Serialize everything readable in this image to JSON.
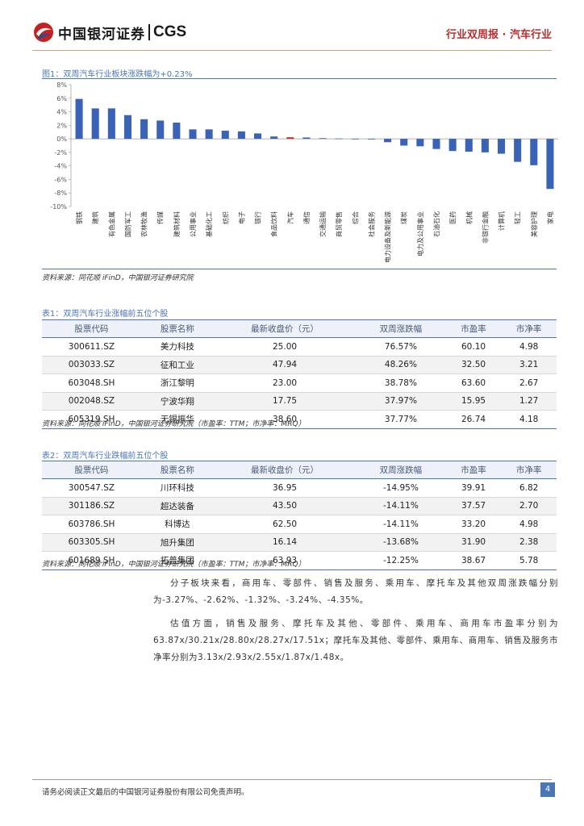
{
  "header": {
    "logo_cn": "中国银河证券",
    "logo_en": "CGS",
    "report_type": "行业双周报 · 汽车行业"
  },
  "figure1": {
    "caption": "图1：双周汽车行业板块涨跌幅为+0.23%",
    "source": "资料来源：同花顺 iFinD，中国银河证券研究院"
  },
  "chart_data": {
    "type": "bar",
    "categories": [
      "钢铁",
      "建筑",
      "有色金属",
      "国防军工",
      "农林牧渔",
      "传媒",
      "建筑材料",
      "公用事业",
      "基础化工",
      "纺织",
      "电子",
      "银行",
      "食品饮料",
      "汽车",
      "通信",
      "交通运输",
      "商贸零售",
      "综合",
      "社会服务",
      "电力设备及新能源",
      "煤炭",
      "电力及公用事业",
      "石油石化",
      "医药",
      "机械",
      "非银行金融",
      "计算机",
      "轻工",
      "美容护理",
      "家电"
    ],
    "values": [
      5.9,
      4.5,
      4.5,
      3.5,
      2.9,
      2.7,
      2.4,
      1.4,
      1.4,
      1.2,
      1.1,
      0.8,
      0.35,
      0.23,
      0.2,
      0.1,
      0.05,
      0.02,
      -0.01,
      -0.5,
      -1.0,
      -1.1,
      -1.5,
      -1.8,
      -1.9,
      -2.0,
      -2.2,
      -3.4,
      -3.9,
      -7.4
    ],
    "highlight_index": 13,
    "ylim": [
      -10,
      8
    ],
    "yticks": [
      -10,
      -8,
      -6,
      -4,
      -2,
      0,
      2,
      4,
      6,
      8
    ],
    "ytick_labels": [
      "-10%",
      "-8%",
      "-6%",
      "-4%",
      "-2%",
      "0%",
      "2%",
      "4%",
      "6%",
      "8%"
    ],
    "bar_color": "#3a63b8",
    "highlight_color": "#c0302a",
    "xlabel": "",
    "ylabel": ""
  },
  "table1": {
    "caption": "表1：双周汽车行业涨幅前五位个股",
    "headers": [
      "股票代码",
      "股票名称",
      "最新收盘价（元）",
      "双周涨跌幅",
      "市盈率",
      "市净率"
    ],
    "rows": [
      [
        "300611.SZ",
        "美力科技",
        "25.00",
        "76.57%",
        "60.10",
        "4.98"
      ],
      [
        "003033.SZ",
        "征和工业",
        "47.94",
        "48.26%",
        "32.50",
        "3.21"
      ],
      [
        "603048.SH",
        "浙江黎明",
        "23.00",
        "38.78%",
        "63.60",
        "2.67"
      ],
      [
        "002048.SZ",
        "宁波华翔",
        "17.75",
        "37.97%",
        "15.95",
        "1.27"
      ],
      [
        "605319.SH",
        "无锡振华",
        "38.60",
        "37.77%",
        "26.74",
        "4.18"
      ]
    ],
    "source": "资料来源：同花顺 iFinD，中国银河证券研究院（市盈率：TTM；市净率：MRQ）"
  },
  "table2": {
    "caption": "表2：双周汽车行业跌幅前五位个股",
    "headers": [
      "股票代码",
      "股票名称",
      "最新收盘价（元）",
      "双周涨跌幅",
      "市盈率",
      "市净率"
    ],
    "rows": [
      [
        "300547.SZ",
        "川环科技",
        "36.95",
        "-14.95%",
        "39.91",
        "6.82"
      ],
      [
        "301186.SZ",
        "超达装备",
        "43.50",
        "-14.11%",
        "37.57",
        "2.70"
      ],
      [
        "603786.SH",
        "科博达",
        "62.50",
        "-14.11%",
        "33.20",
        "4.98"
      ],
      [
        "603305.SH",
        "旭升集团",
        "16.14",
        "-13.68%",
        "31.90",
        "2.38"
      ],
      [
        "601689.SH",
        "拓普集团",
        "63.93",
        "-12.25%",
        "38.67",
        "5.78"
      ]
    ],
    "source": "资料来源：同花顺 iFinD，中国银河证券研究院（市盈率：TTM；市净率：MRQ）"
  },
  "body": {
    "p1": "分子板块来看，商用车、零部件、销售及服务、乘用车、摩托车及其他双周涨跌幅分别为-3.27%、-2.62%、-1.32%、-3.24%、-4.35%。",
    "p2": "估值方面，销售及服务、摩托车及其他、零部件、乘用车、商用车市盈率分别为63.87x/30.21x/28.80x/28.27x/17.51x；摩托车及其他、零部件、乘用车、商用车、销售及服务市净率分别为3.13x/2.93x/2.55x/1.87x/1.48x。"
  },
  "footer": {
    "disclaimer": "请务必阅读正文最后的中国银河证券股份有限公司免责声明。",
    "page": "4"
  }
}
